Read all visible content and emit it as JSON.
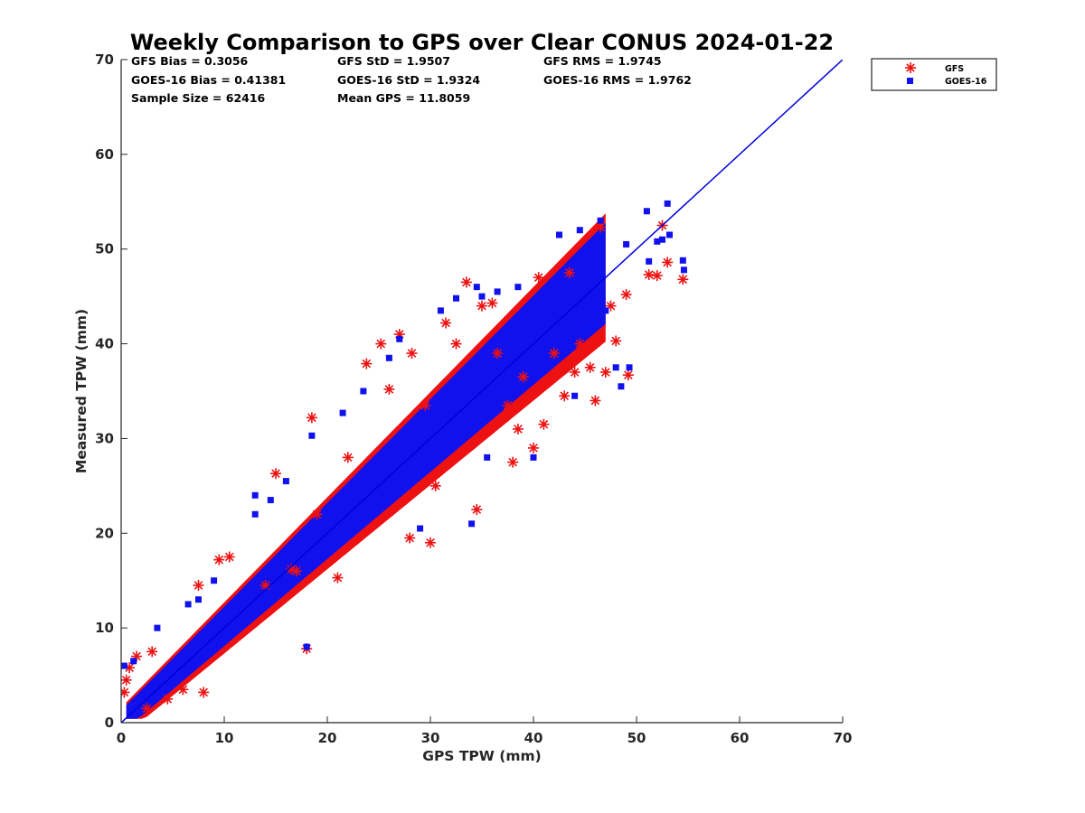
{
  "chart_data": {
    "type": "scatter",
    "title": "Weekly Comparison to GPS over Clear CONUS 2024-01-22",
    "xlabel": "GPS TPW (mm)",
    "ylabel": "Measured TPW (mm)",
    "xlim": [
      0,
      70
    ],
    "ylim": [
      0,
      70
    ],
    "xticks": [
      "0",
      "10",
      "20",
      "30",
      "40",
      "50",
      "60",
      "70"
    ],
    "yticks": [
      "0",
      "10",
      "20",
      "30",
      "40",
      "50",
      "60",
      "70"
    ],
    "grid": false,
    "legend_position": "outside-top-right",
    "stats": [
      [
        "GFS Bias = 0.3056",
        "GFS StD = 1.9507",
        "GFS RMS = 1.9745"
      ],
      [
        "GOES-16 Bias = 0.41381",
        "GOES-16 StD = 1.9324",
        "GOES-16 RMS = 1.9762"
      ],
      [
        "Sample Size = 62416",
        "Mean GPS = 11.8059"
      ]
    ],
    "reference_line": {
      "x": [
        0,
        70
      ],
      "y": [
        0,
        70
      ],
      "color": "#0000dd"
    },
    "series": [
      {
        "name": "GFS",
        "marker": "asterisk",
        "color": "#ee1111",
        "outliers": [
          [
            0.3,
            3.2
          ],
          [
            0.5,
            4.5
          ],
          [
            0.8,
            5.8
          ],
          [
            1.5,
            7.0
          ],
          [
            2.5,
            1.5
          ],
          [
            3.0,
            7.5
          ],
          [
            4.5,
            2.5
          ],
          [
            6.0,
            3.5
          ],
          [
            8.0,
            3.2
          ],
          [
            7.5,
            14.5
          ],
          [
            9.5,
            17.2
          ],
          [
            10.5,
            17.5
          ],
          [
            18.0,
            7.8
          ],
          [
            21.0,
            15.3
          ],
          [
            15.0,
            26.3
          ],
          [
            18.5,
            32.2
          ],
          [
            19.0,
            22.0
          ],
          [
            23.8,
            37.9
          ],
          [
            25.2,
            40.0
          ],
          [
            26.0,
            35.2
          ],
          [
            27.0,
            41.0
          ],
          [
            28.2,
            39.0
          ],
          [
            29.5,
            33.5
          ],
          [
            30.5,
            25.0
          ],
          [
            31.5,
            42.2
          ],
          [
            32.5,
            40.0
          ],
          [
            33.5,
            46.5
          ],
          [
            34.5,
            22.5
          ],
          [
            35.0,
            44.0
          ],
          [
            36.0,
            44.3
          ],
          [
            37.5,
            33.5
          ],
          [
            38.0,
            27.5
          ],
          [
            38.5,
            31.0
          ],
          [
            39.0,
            36.5
          ],
          [
            40.0,
            29.0
          ],
          [
            40.5,
            47.0
          ],
          [
            41.0,
            31.5
          ],
          [
            42.0,
            39.0
          ],
          [
            43.0,
            34.5
          ],
          [
            44.0,
            37.0
          ],
          [
            44.5,
            40.0
          ],
          [
            45.5,
            37.5
          ],
          [
            46.0,
            34.0
          ],
          [
            46.5,
            52.3
          ],
          [
            47.0,
            37.0
          ],
          [
            47.5,
            44.0
          ],
          [
            48.0,
            40.3
          ],
          [
            49.0,
            45.2
          ],
          [
            49.2,
            36.7
          ],
          [
            51.2,
            47.3
          ],
          [
            52.0,
            47.2
          ],
          [
            52.5,
            52.5
          ],
          [
            53.0,
            48.6
          ],
          [
            54.5,
            46.8
          ],
          [
            16.5,
            16.2
          ],
          [
            17.0,
            16.0
          ],
          [
            28.0,
            19.5
          ],
          [
            30.0,
            19.0
          ],
          [
            14.0,
            14.5
          ],
          [
            22.0,
            28.0
          ],
          [
            36.5,
            39.0
          ],
          [
            43.5,
            47.5
          ]
        ]
      },
      {
        "name": "GOES-16",
        "marker": "square",
        "color": "#1111ee",
        "outliers": [
          [
            0.3,
            6.0
          ],
          [
            1.2,
            6.5
          ],
          [
            3.5,
            10.0
          ],
          [
            6.5,
            12.5
          ],
          [
            7.5,
            13.0
          ],
          [
            9.0,
            15.0
          ],
          [
            13.0,
            22.0
          ],
          [
            13.0,
            24.0
          ],
          [
            14.5,
            23.5
          ],
          [
            16.0,
            25.5
          ],
          [
            18.0,
            8.0
          ],
          [
            18.5,
            30.3
          ],
          [
            21.5,
            32.7
          ],
          [
            23.5,
            35.0
          ],
          [
            26.0,
            38.5
          ],
          [
            27.0,
            40.5
          ],
          [
            29.0,
            20.5
          ],
          [
            31.0,
            43.5
          ],
          [
            32.5,
            44.8
          ],
          [
            34.0,
            21.0
          ],
          [
            34.5,
            46.0
          ],
          [
            35.5,
            28.0
          ],
          [
            36.5,
            45.5
          ],
          [
            38.5,
            46.0
          ],
          [
            40.0,
            28.0
          ],
          [
            41.0,
            44.5
          ],
          [
            42.5,
            51.5
          ],
          [
            44.0,
            34.5
          ],
          [
            44.5,
            52.0
          ],
          [
            45.5,
            49.5
          ],
          [
            46.5,
            53.0
          ],
          [
            47.0,
            43.5
          ],
          [
            48.0,
            37.5
          ],
          [
            49.0,
            50.5
          ],
          [
            49.3,
            37.5
          ],
          [
            51.0,
            54.0
          ],
          [
            51.2,
            48.7
          ],
          [
            52.0,
            50.8
          ],
          [
            52.5,
            51.0
          ],
          [
            53.0,
            54.8
          ],
          [
            53.2,
            51.5
          ],
          [
            54.5,
            48.8
          ],
          [
            54.6,
            47.8
          ],
          [
            48.5,
            35.5
          ],
          [
            35.0,
            45.0
          ],
          [
            41.5,
            43.5
          ]
        ]
      }
    ]
  }
}
